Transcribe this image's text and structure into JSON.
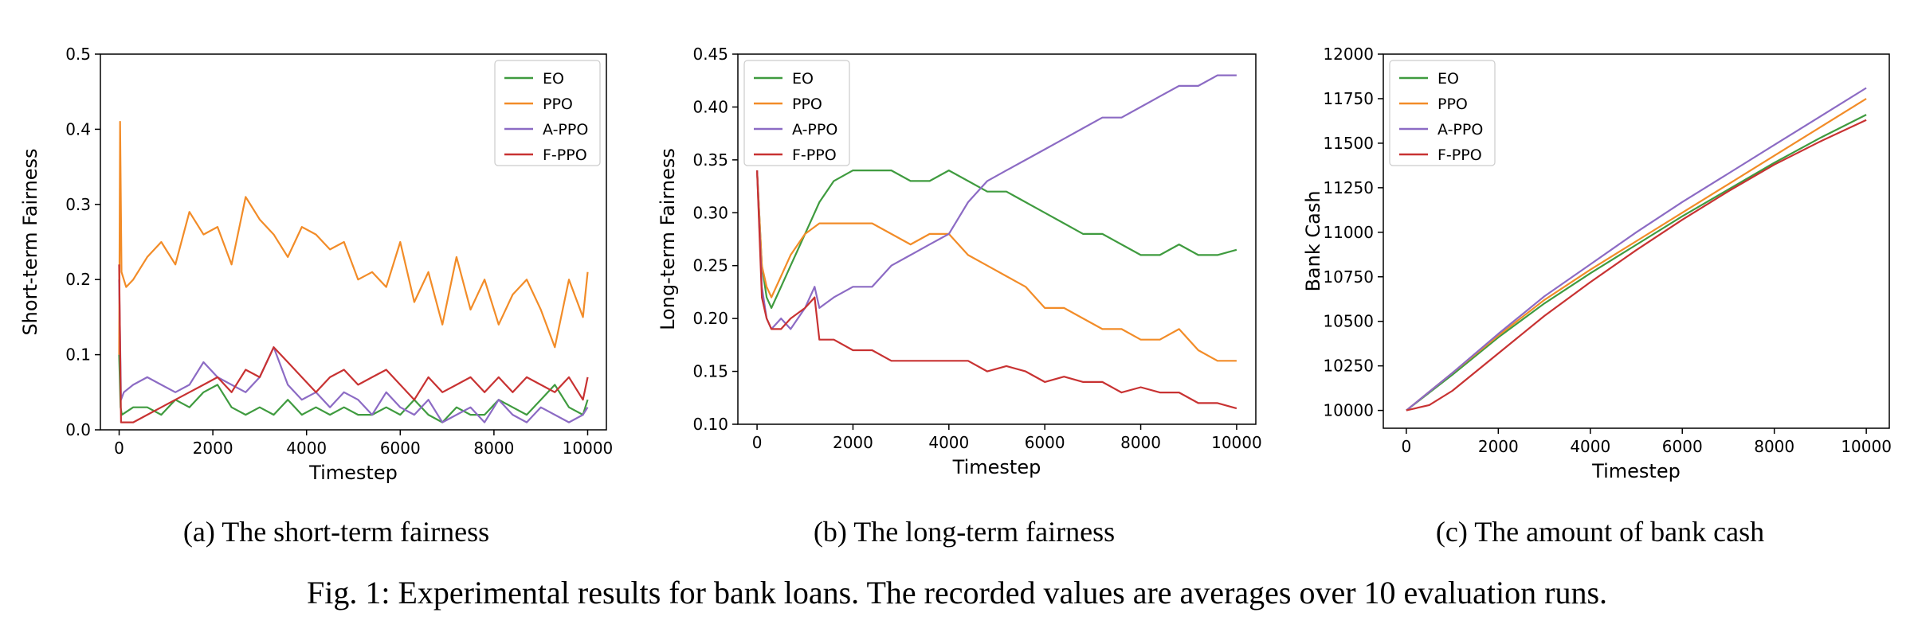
{
  "caption": "Fig. 1: Experimental results for bank loans. The recorded values are averages over 10 evaluation runs.",
  "colors": {
    "EO": "#3f9b3f",
    "PPO": "#f28c28",
    "A-PPO": "#8c6bc4",
    "F-PPO": "#c83232"
  },
  "chart_data": [
    {
      "type": "line",
      "subcaption": "(a) The short-term fairness",
      "xlabel": "Timestep",
      "ylabel": "Short-term Fairness",
      "xlim": [
        -400,
        10400
      ],
      "ylim": [
        0,
        0.5
      ],
      "xticks": [
        0,
        2000,
        4000,
        6000,
        8000,
        10000
      ],
      "xtick_labels": [
        "0",
        "2000",
        "4000",
        "6000",
        "8000",
        "10000"
      ],
      "yticks": [
        0,
        0.1,
        0.2,
        0.3,
        0.4,
        0.5
      ],
      "ytick_labels": [
        "0.0",
        "0.1",
        "0.2",
        "0.3",
        "0.4",
        "0.5"
      ],
      "legend": "top-right",
      "grid": false,
      "series": [
        {
          "name": "EO",
          "x": [
            0,
            30,
            60,
            300,
            600,
            900,
            1200,
            1500,
            1800,
            2100,
            2400,
            2700,
            3000,
            3300,
            3600,
            3900,
            4200,
            4500,
            4800,
            5100,
            5400,
            5700,
            6000,
            6300,
            6600,
            6900,
            7200,
            7500,
            7800,
            8100,
            8400,
            8700,
            9000,
            9300,
            9600,
            9900,
            10000
          ],
          "y": [
            0.1,
            0.03,
            0.02,
            0.03,
            0.03,
            0.02,
            0.04,
            0.03,
            0.05,
            0.06,
            0.03,
            0.02,
            0.03,
            0.02,
            0.04,
            0.02,
            0.03,
            0.02,
            0.03,
            0.02,
            0.02,
            0.03,
            0.02,
            0.04,
            0.02,
            0.01,
            0.03,
            0.02,
            0.02,
            0.04,
            0.03,
            0.02,
            0.04,
            0.06,
            0.03,
            0.02,
            0.04
          ]
        },
        {
          "name": "PPO",
          "x": [
            0,
            20,
            50,
            150,
            300,
            600,
            900,
            1200,
            1500,
            1800,
            2100,
            2400,
            2700,
            3000,
            3300,
            3600,
            3900,
            4200,
            4500,
            4800,
            5100,
            5400,
            5700,
            6000,
            6300,
            6600,
            6900,
            7200,
            7500,
            7800,
            8100,
            8400,
            8700,
            9000,
            9300,
            9600,
            9900,
            10000
          ],
          "y": [
            0.1,
            0.41,
            0.21,
            0.19,
            0.2,
            0.23,
            0.25,
            0.22,
            0.29,
            0.26,
            0.27,
            0.22,
            0.31,
            0.28,
            0.26,
            0.23,
            0.27,
            0.26,
            0.24,
            0.25,
            0.2,
            0.21,
            0.19,
            0.25,
            0.17,
            0.21,
            0.14,
            0.23,
            0.16,
            0.2,
            0.14,
            0.18,
            0.2,
            0.16,
            0.11,
            0.2,
            0.15,
            0.21
          ]
        },
        {
          "name": "A-PPO",
          "x": [
            0,
            40,
            100,
            300,
            600,
            900,
            1200,
            1500,
            1800,
            2100,
            2400,
            2700,
            3000,
            3300,
            3600,
            3900,
            4200,
            4500,
            4800,
            5100,
            5400,
            5700,
            6000,
            6300,
            6600,
            6900,
            7200,
            7500,
            7800,
            8100,
            8400,
            8700,
            9000,
            9300,
            9600,
            9900,
            10000
          ],
          "y": [
            0.2,
            0.04,
            0.05,
            0.06,
            0.07,
            0.06,
            0.05,
            0.06,
            0.09,
            0.07,
            0.06,
            0.05,
            0.07,
            0.11,
            0.06,
            0.04,
            0.05,
            0.03,
            0.05,
            0.04,
            0.02,
            0.05,
            0.03,
            0.02,
            0.04,
            0.01,
            0.02,
            0.03,
            0.01,
            0.04,
            0.02,
            0.01,
            0.03,
            0.02,
            0.01,
            0.02,
            0.03
          ]
        },
        {
          "name": "F-PPO",
          "x": [
            0,
            40,
            100,
            300,
            600,
            900,
            1200,
            1500,
            1800,
            2100,
            2400,
            2700,
            3000,
            3300,
            3600,
            3900,
            4200,
            4500,
            4800,
            5100,
            5400,
            5700,
            6000,
            6300,
            6600,
            6900,
            7200,
            7500,
            7800,
            8100,
            8400,
            8700,
            9000,
            9300,
            9600,
            9900,
            10000
          ],
          "y": [
            0.22,
            0.01,
            0.01,
            0.01,
            0.02,
            0.03,
            0.04,
            0.05,
            0.06,
            0.07,
            0.05,
            0.08,
            0.07,
            0.11,
            0.09,
            0.07,
            0.05,
            0.07,
            0.08,
            0.06,
            0.07,
            0.08,
            0.06,
            0.04,
            0.07,
            0.05,
            0.06,
            0.07,
            0.05,
            0.07,
            0.05,
            0.07,
            0.06,
            0.05,
            0.07,
            0.04,
            0.07
          ]
        }
      ]
    },
    {
      "type": "line",
      "subcaption": "(b) The long-term fairness",
      "xlabel": "Timestep",
      "ylabel": "Long-term Fairness",
      "xlim": [
        -400,
        10400
      ],
      "ylim": [
        0.1,
        0.45
      ],
      "xticks": [
        0,
        2000,
        4000,
        6000,
        8000,
        10000
      ],
      "xtick_labels": [
        "0",
        "2000",
        "4000",
        "6000",
        "8000",
        "10000"
      ],
      "yticks": [
        0.1,
        0.15,
        0.2,
        0.25,
        0.3,
        0.35,
        0.4,
        0.45
      ],
      "ytick_labels": [
        "0.10",
        "0.15",
        "0.20",
        "0.25",
        "0.30",
        "0.35",
        "0.40",
        "0.45"
      ],
      "legend": "top-left",
      "grid": false,
      "series": [
        {
          "name": "EO",
          "x": [
            0,
            100,
            200,
            300,
            500,
            700,
            1000,
            1300,
            1600,
            2000,
            2400,
            2800,
            3200,
            3600,
            4000,
            4400,
            4800,
            5200,
            5600,
            6000,
            6400,
            6800,
            7200,
            7600,
            8000,
            8400,
            8800,
            9200,
            9600,
            10000
          ],
          "y": [
            0.34,
            0.25,
            0.22,
            0.21,
            0.23,
            0.25,
            0.28,
            0.31,
            0.33,
            0.34,
            0.34,
            0.34,
            0.33,
            0.33,
            0.34,
            0.33,
            0.32,
            0.32,
            0.31,
            0.3,
            0.29,
            0.28,
            0.28,
            0.27,
            0.26,
            0.26,
            0.27,
            0.26,
            0.26,
            0.265
          ]
        },
        {
          "name": "PPO",
          "x": [
            0,
            100,
            200,
            300,
            500,
            700,
            1000,
            1300,
            1600,
            2000,
            2400,
            2800,
            3200,
            3600,
            4000,
            4400,
            4800,
            5200,
            5600,
            6000,
            6400,
            6800,
            7200,
            7600,
            8000,
            8400,
            8800,
            9200,
            9600,
            10000
          ],
          "y": [
            0.34,
            0.25,
            0.23,
            0.22,
            0.24,
            0.26,
            0.28,
            0.29,
            0.29,
            0.29,
            0.29,
            0.28,
            0.27,
            0.28,
            0.28,
            0.26,
            0.25,
            0.24,
            0.23,
            0.21,
            0.21,
            0.2,
            0.19,
            0.19,
            0.18,
            0.18,
            0.19,
            0.17,
            0.16,
            0.16
          ]
        },
        {
          "name": "A-PPO",
          "x": [
            0,
            100,
            200,
            300,
            500,
            700,
            1000,
            1200,
            1300,
            1600,
            2000,
            2400,
            2800,
            3200,
            3600,
            4000,
            4400,
            4800,
            5200,
            5600,
            6000,
            6400,
            6800,
            7200,
            7600,
            8000,
            8400,
            8800,
            9200,
            9600,
            10000
          ],
          "y": [
            0.34,
            0.23,
            0.2,
            0.19,
            0.2,
            0.19,
            0.21,
            0.23,
            0.21,
            0.22,
            0.23,
            0.23,
            0.25,
            0.26,
            0.27,
            0.28,
            0.31,
            0.33,
            0.34,
            0.35,
            0.36,
            0.37,
            0.38,
            0.39,
            0.39,
            0.4,
            0.41,
            0.42,
            0.42,
            0.43,
            0.43
          ]
        },
        {
          "name": "F-PPO",
          "x": [
            0,
            100,
            200,
            300,
            500,
            700,
            1000,
            1200,
            1300,
            1600,
            2000,
            2400,
            2800,
            3200,
            3600,
            4000,
            4400,
            4800,
            5200,
            5600,
            6000,
            6400,
            6800,
            7200,
            7600,
            8000,
            8400,
            8800,
            9200,
            9600,
            10000
          ],
          "y": [
            0.34,
            0.22,
            0.2,
            0.19,
            0.19,
            0.2,
            0.21,
            0.22,
            0.18,
            0.18,
            0.17,
            0.17,
            0.16,
            0.16,
            0.16,
            0.16,
            0.16,
            0.15,
            0.155,
            0.15,
            0.14,
            0.145,
            0.14,
            0.14,
            0.13,
            0.135,
            0.13,
            0.13,
            0.12,
            0.12,
            0.115
          ]
        }
      ]
    },
    {
      "type": "line",
      "subcaption": "(c) The amount of bank cash",
      "xlabel": "Timestep",
      "ylabel": "Bank Cash",
      "xlim": [
        -500,
        10500
      ],
      "ylim": [
        9900,
        12000
      ],
      "xticks": [
        0,
        2000,
        4000,
        6000,
        8000,
        10000
      ],
      "xtick_labels": [
        "0",
        "2000",
        "4000",
        "6000",
        "8000",
        "10000"
      ],
      "yticks": [
        10000,
        10250,
        10500,
        10750,
        11000,
        11250,
        11500,
        11750,
        12000
      ],
      "ytick_labels": [
        "10000",
        "10250",
        "10500",
        "10750",
        "11000",
        "11250",
        "11500",
        "11750",
        "12000"
      ],
      "legend": "top-left",
      "grid": false,
      "series": [
        {
          "name": "EO",
          "x": [
            0,
            1000,
            2000,
            3000,
            4000,
            5000,
            6000,
            7000,
            8000,
            9000,
            10000
          ],
          "y": [
            10000,
            10200,
            10410,
            10600,
            10770,
            10930,
            11090,
            11240,
            11390,
            11530,
            11660
          ]
        },
        {
          "name": "PPO",
          "x": [
            0,
            1000,
            2000,
            3000,
            4000,
            5000,
            6000,
            7000,
            8000,
            9000,
            10000
          ],
          "y": [
            10000,
            10210,
            10420,
            10620,
            10790,
            10950,
            11110,
            11270,
            11430,
            11590,
            11750
          ]
        },
        {
          "name": "A-PPO",
          "x": [
            0,
            1000,
            2000,
            3000,
            4000,
            5000,
            6000,
            7000,
            8000,
            9000,
            10000
          ],
          "y": [
            10000,
            10210,
            10430,
            10640,
            10820,
            11000,
            11170,
            11330,
            11490,
            11650,
            11810
          ]
        },
        {
          "name": "F-PPO",
          "x": [
            0,
            500,
            1000,
            2000,
            3000,
            4000,
            5000,
            6000,
            7000,
            8000,
            9000,
            10000
          ],
          "y": [
            10000,
            10030,
            10110,
            10320,
            10530,
            10720,
            10900,
            11070,
            11230,
            11380,
            11510,
            11630
          ]
        }
      ]
    }
  ]
}
